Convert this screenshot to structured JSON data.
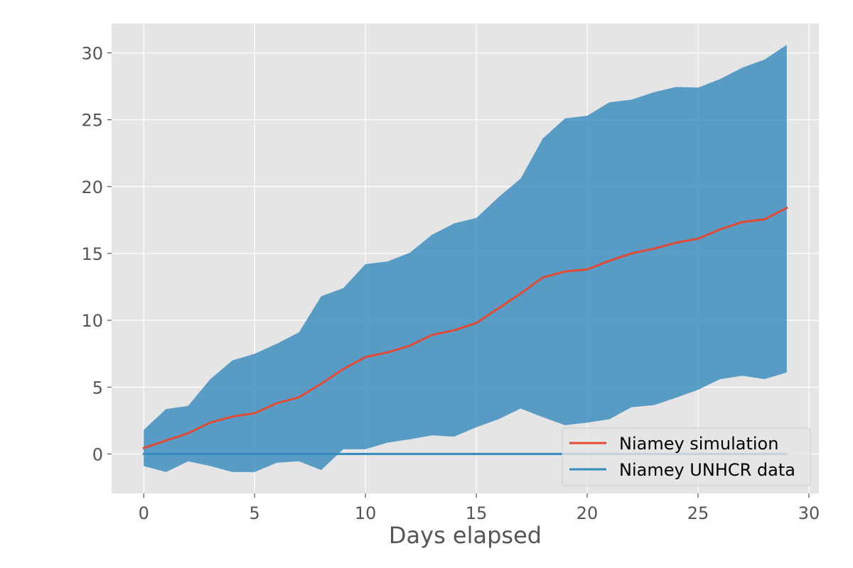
{
  "chart_data": {
    "type": "line",
    "title": "",
    "xlabel": "Days elapsed",
    "ylabel": "",
    "xlim": [
      -1.45,
      30.45
    ],
    "ylim": [
      -2.95,
      32.2
    ],
    "xticks": [
      0,
      5,
      10,
      15,
      20,
      25,
      30
    ],
    "yticks": [
      0,
      5,
      10,
      15,
      20,
      25,
      30
    ],
    "grid": true,
    "legend_position": "lower-right",
    "x": [
      0,
      1,
      2,
      3,
      4,
      5,
      6,
      7,
      8,
      9,
      10,
      11,
      12,
      13,
      14,
      15,
      16,
      17,
      18,
      19,
      20,
      21,
      22,
      23,
      24,
      25,
      26,
      27,
      28,
      29
    ],
    "band": {
      "upper": [
        1.8,
        3.35,
        3.6,
        5.6,
        7.0,
        7.5,
        8.25,
        9.1,
        11.8,
        12.4,
        14.2,
        14.4,
        15.05,
        16.4,
        17.25,
        17.65,
        19.2,
        20.6,
        23.6,
        25.1,
        25.3,
        26.3,
        26.5,
        27.05,
        27.45,
        27.4,
        28.05,
        28.9,
        29.5,
        30.6
      ],
      "lower": [
        -0.9,
        -1.35,
        -0.55,
        -0.9,
        -1.35,
        -1.35,
        -0.65,
        -0.55,
        -1.2,
        0.35,
        0.35,
        0.85,
        1.1,
        1.4,
        1.3,
        2.0,
        2.6,
        3.4,
        2.75,
        2.15,
        2.35,
        2.6,
        3.5,
        3.65,
        4.2,
        4.8,
        5.6,
        5.85,
        5.6,
        6.1
      ],
      "color": "#348ABD",
      "opacity": 0.8
    },
    "series": [
      {
        "name": "Niamey simulation",
        "color": "#E24A33",
        "values": [
          0.45,
          1.0,
          1.55,
          2.35,
          2.8,
          3.05,
          3.8,
          4.25,
          5.25,
          6.35,
          7.25,
          7.6,
          8.1,
          8.9,
          9.25,
          9.8,
          10.9,
          12.0,
          13.2,
          13.65,
          13.8,
          14.45,
          15.0,
          15.35,
          15.8,
          16.1,
          16.8,
          17.35,
          17.55,
          18.4
        ]
      },
      {
        "name": "Niamey UNHCR data",
        "color": "#348ABD",
        "values": [
          0,
          0,
          0,
          0,
          0,
          0,
          0,
          0,
          0,
          0,
          0,
          0,
          0,
          0,
          0,
          0,
          0,
          0,
          0,
          0,
          0,
          0,
          0,
          0,
          0,
          0,
          0,
          0,
          0,
          0
        ]
      }
    ]
  },
  "colors": {
    "plot_background": "#E5E5E5",
    "grid": "#FFFFFF",
    "tick_text": "#555555"
  }
}
